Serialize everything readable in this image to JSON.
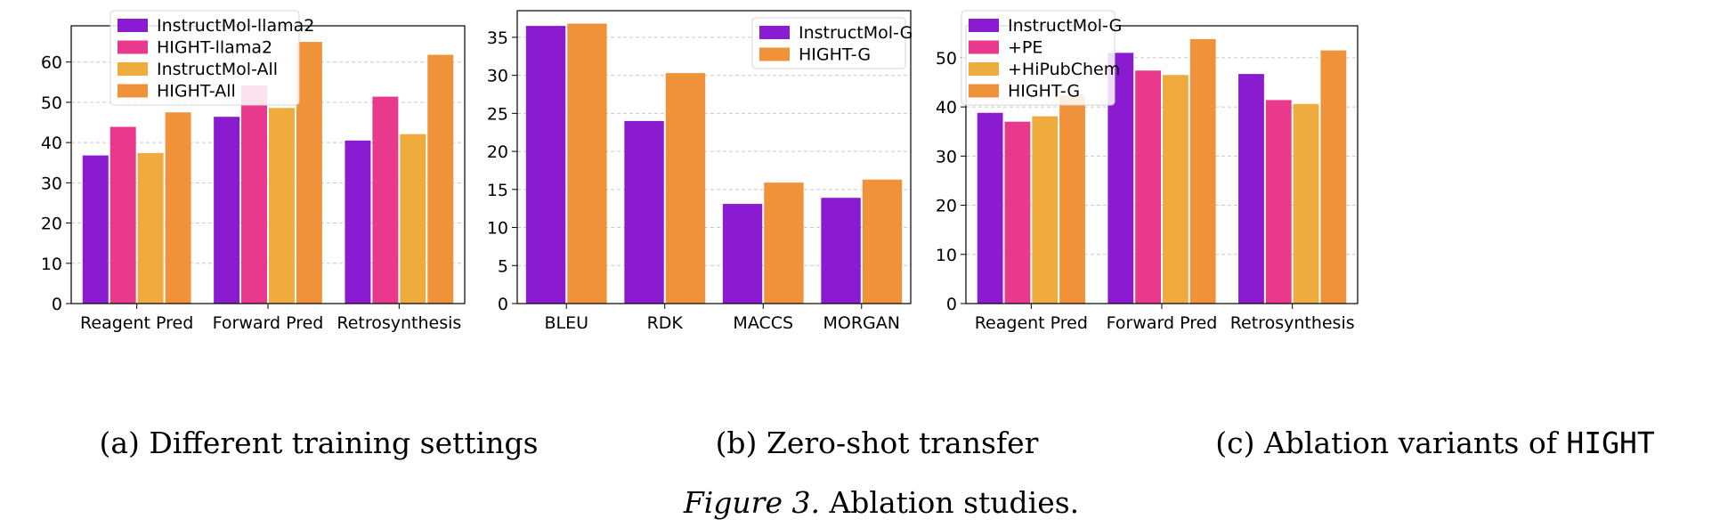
{
  "figure_caption": {
    "label": "Figure 3.",
    "text": "Ablation studies."
  },
  "colors": {
    "purple": "#8b1bd0",
    "pink": "#e8398d",
    "light_orange": "#f0ab3e",
    "orange": "#f0923a",
    "grid": "#c9c9c9"
  },
  "chart_data": [
    {
      "type": "bar",
      "title": "",
      "panel_caption": {
        "prefix": "(a)",
        "text": "Different training settings",
        "mono": ""
      },
      "xlabel": "",
      "ylabel": "",
      "ylim": [
        0,
        69
      ],
      "yticks": [
        0,
        10,
        20,
        30,
        40,
        50,
        60
      ],
      "grid": true,
      "legend": "top-left",
      "categories": [
        "Reagent Pred",
        "Forward Pred",
        "Retrosynthesis"
      ],
      "series": [
        {
          "name": "InstructMol-llama2",
          "color": "#8b1bd0",
          "values": [
            36.8,
            46.4,
            40.5
          ]
        },
        {
          "name": "HIGHT-llama2",
          "color": "#e8398d",
          "values": [
            43.9,
            54.2,
            51.4
          ]
        },
        {
          "name": "InstructMol-All",
          "color": "#f0ab3e",
          "values": [
            37.4,
            48.6,
            42.1
          ]
        },
        {
          "name": "HIGHT-All",
          "color": "#f0923a",
          "values": [
            47.5,
            65.0,
            61.8
          ]
        }
      ]
    },
    {
      "type": "bar",
      "title": "",
      "panel_caption": {
        "prefix": "(b)",
        "text": "Zero-shot transfer",
        "mono": ""
      },
      "xlabel": "",
      "ylabel": "",
      "ylim": [
        0,
        38.5
      ],
      "yticks": [
        0,
        5,
        10,
        15,
        20,
        25,
        30,
        35
      ],
      "grid": true,
      "legend": "top-right",
      "categories": [
        "BLEU",
        "RDK",
        "MACCS",
        "MORGAN"
      ],
      "series": [
        {
          "name": "InstructMol-G",
          "color": "#8b1bd0",
          "values": [
            36.5,
            24.0,
            13.1,
            13.9
          ]
        },
        {
          "name": "HIGHT-G",
          "color": "#f0923a",
          "values": [
            36.8,
            30.3,
            15.9,
            16.3
          ]
        }
      ]
    },
    {
      "type": "bar",
      "title": "",
      "panel_caption": {
        "prefix": "(c)",
        "text": "Ablation variants of",
        "mono": "HIGHT"
      },
      "xlabel": "",
      "ylabel": "",
      "ylim": [
        0,
        56.5
      ],
      "yticks": [
        0,
        10,
        20,
        30,
        40,
        50
      ],
      "grid": true,
      "legend": "top-left",
      "categories": [
        "Reagent Pred",
        "Forward Pred",
        "Retrosynthesis"
      ],
      "series": [
        {
          "name": "InstructMol-G",
          "color": "#8b1bd0",
          "values": [
            38.8,
            51.0,
            46.7
          ]
        },
        {
          "name": "+PE",
          "color": "#e8398d",
          "values": [
            37.0,
            47.4,
            41.4
          ]
        },
        {
          "name": "+HiPubChem",
          "color": "#f0ab3e",
          "values": [
            38.1,
            46.5,
            40.6
          ]
        },
        {
          "name": "HIGHT-G",
          "color": "#f0923a",
          "values": [
            42.4,
            53.8,
            51.5
          ]
        }
      ]
    }
  ]
}
